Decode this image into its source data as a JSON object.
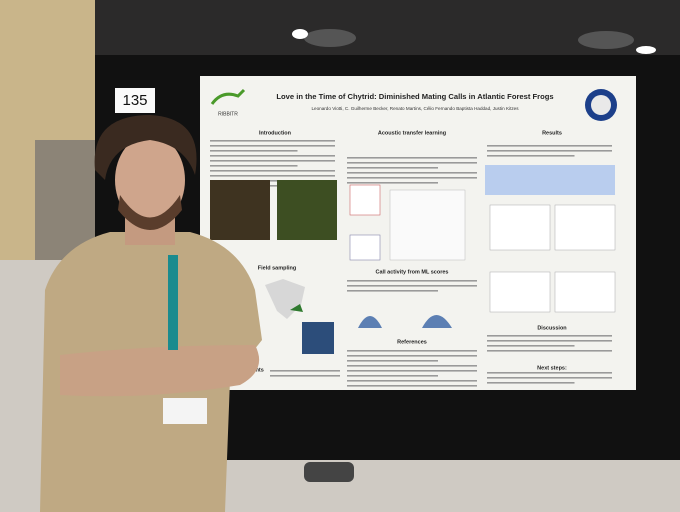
{
  "sign": {
    "number": "135"
  },
  "poster": {
    "logo": "RIBBITR",
    "title": "Love in the Time of Chytrid: Diminished Mating Calls in Atlantic Forest Frogs",
    "authors": "Leonardo Viotti, C. Guilherme Becker, Renato Martins, Célio Fernando Baptista Haddad, Justin Kitzes",
    "sections": [
      "Introduction",
      "Acoustic transfer learning",
      "Results",
      "Field sampling",
      "Call activity from ML scores",
      "References",
      "Discussion",
      "Next steps:",
      "Acknowledgements"
    ]
  }
}
